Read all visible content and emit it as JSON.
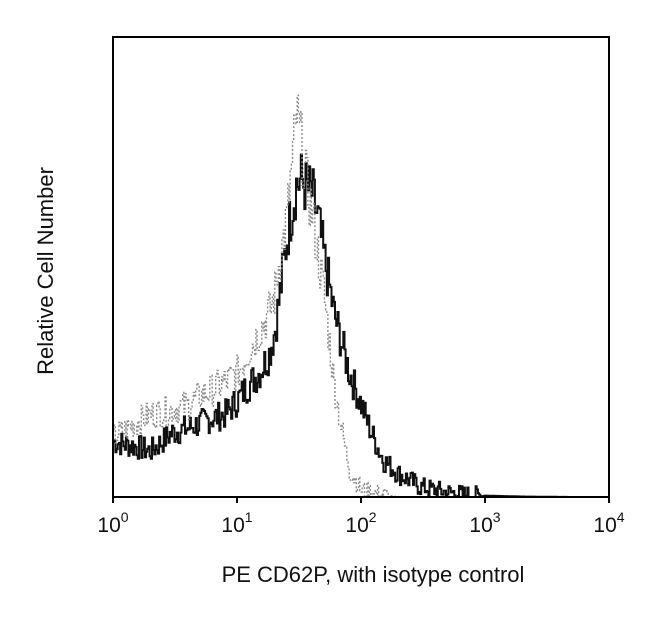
{
  "chart_data": {
    "type": "line",
    "title": "",
    "xlabel": "PE CD62P, with isotype control",
    "ylabel": "Relative Cell Number",
    "xscale": "log",
    "xlim": [
      1,
      10000
    ],
    "ylim": [
      0,
      100
    ],
    "grid": false,
    "legend": "none",
    "x_ticks": [
      {
        "value": 1,
        "base": "10",
        "exp": "0"
      },
      {
        "value": 10,
        "base": "10",
        "exp": "1"
      },
      {
        "value": 100,
        "base": "10",
        "exp": "2"
      },
      {
        "value": 1000,
        "base": "10",
        "exp": "3"
      },
      {
        "value": 10000,
        "base": "10",
        "exp": "4"
      }
    ],
    "series": [
      {
        "style": "solid",
        "color": "#111111",
        "x": [
          1,
          1.5,
          2,
          3,
          4,
          5,
          6,
          8,
          10,
          12,
          15,
          18,
          20,
          22,
          25,
          28,
          30,
          33,
          36,
          40,
          45,
          50,
          55,
          60,
          70,
          80,
          100,
          120,
          150,
          200,
          250,
          300,
          400,
          500,
          700,
          1000,
          2000,
          5000,
          10000
        ],
        "y": [
          12,
          11,
          10,
          14,
          15,
          16,
          17,
          18,
          21,
          24,
          27,
          31,
          36,
          44,
          56,
          64,
          68,
          69,
          67,
          66,
          60,
          52,
          46,
          40,
          33,
          27,
          20,
          14,
          8,
          5,
          3.5,
          2.2,
          1.5,
          1.0,
          0.5,
          0.3,
          0.1,
          0,
          0
        ]
      },
      {
        "style": "dotted",
        "color": "#8a8a8a",
        "x": [
          1,
          1.5,
          2,
          3,
          4,
          5,
          6,
          8,
          10,
          12,
          15,
          18,
          20,
          22,
          25,
          28,
          30,
          33,
          36,
          40,
          45,
          50,
          55,
          60,
          70,
          80,
          100,
          150,
          200,
          10000
        ],
        "y": [
          13,
          16,
          18,
          19,
          20,
          22,
          23,
          25,
          27,
          31,
          36,
          40,
          44,
          52,
          60,
          74,
          83,
          76,
          68,
          62,
          52,
          44,
          34,
          25,
          14,
          6,
          1.5,
          0.5,
          0,
          0
        ]
      }
    ]
  }
}
